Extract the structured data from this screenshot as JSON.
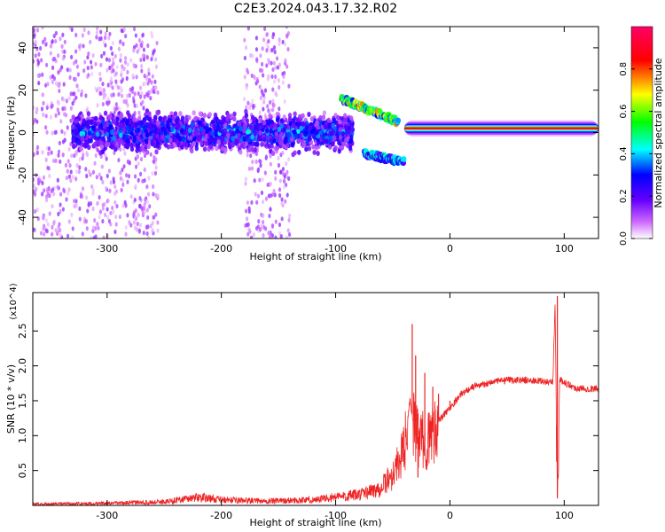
{
  "title": "C2E3.2024.043.17.32.R02",
  "chart_data": [
    {
      "type": "heatmap",
      "xlabel": "Height of straight line (km)",
      "ylabel": "Frequency (Hz)",
      "xlim": [
        -365,
        130
      ],
      "ylim": [
        -50,
        50
      ],
      "xticks": [
        -300,
        -200,
        -100,
        0,
        100
      ],
      "xtick_labels": [
        "-300",
        "-200",
        "-100",
        "0",
        "100"
      ],
      "yticks": [
        -40,
        -20,
        0,
        20,
        40
      ],
      "ytick_labels": [
        "-40",
        "-20",
        "0",
        "20",
        "40"
      ],
      "colorbar": {
        "label": "Normalized spectral amplitude",
        "range": [
          0,
          1
        ],
        "ticks": [
          0.0,
          0.2,
          0.4,
          0.6,
          0.8
        ],
        "tick_labels": [
          "0.0",
          "0.2",
          "0.4",
          "0.6",
          "0.8"
        ],
        "colors": [
          "#ffffff",
          "#cc66ff",
          "#6600ff",
          "#0000ff",
          "#00ffff",
          "#00ff00",
          "#ffff00",
          "#ff0000",
          "#ff0066"
        ]
      },
      "features": [
        {
          "region": "diffuse noise",
          "x_range": [
            -365,
            -255
          ],
          "y_range": [
            -50,
            50
          ],
          "amplitude": 0.1
        },
        {
          "region": "diffuse noise",
          "x_range": [
            -180,
            -140
          ],
          "y_range": [
            -50,
            50
          ],
          "amplitude": 0.1
        },
        {
          "region": "main band",
          "x_range": [
            -330,
            -85
          ],
          "y_center": 0,
          "y_halfwidth": 8,
          "amplitude": 0.3
        },
        {
          "region": "upper branch",
          "x_range": [
            -95,
            -45
          ],
          "y_start": 16,
          "y_end": 5,
          "amplitude": 0.6
        },
        {
          "region": "lower branch",
          "x_range": [
            -75,
            -40
          ],
          "y_start": -10,
          "y_end": -14,
          "amplitude": 0.4
        },
        {
          "region": "steady line",
          "x_range": [
            -40,
            130
          ],
          "y_center": 2,
          "amplitude": 0.95
        }
      ]
    },
    {
      "type": "line",
      "xlabel": "Height of straight line (km)",
      "ylabel": "SNR (10 * v/v)",
      "y_multiplier": "(x10^4)",
      "xlim": [
        -365,
        130
      ],
      "ylim": [
        0,
        3.05
      ],
      "xticks": [
        -300,
        -200,
        -100,
        0,
        100
      ],
      "xtick_labels": [
        "-300",
        "-200",
        "-100",
        "0",
        "100"
      ],
      "yticks": [
        0.5,
        1.0,
        1.5,
        2.0,
        2.5
      ],
      "ytick_labels": [
        "0.5",
        "1.0",
        "1.5",
        "2.0",
        "2.5"
      ],
      "series": [
        {
          "color": "#ee2222",
          "points": [
            [
              -365,
              0.02
            ],
            [
              -300,
              0.03
            ],
            [
              -250,
              0.05
            ],
            [
              -220,
              0.12
            ],
            [
              -200,
              0.08
            ],
            [
              -160,
              0.06
            ],
            [
              -120,
              0.08
            ],
            [
              -100,
              0.12
            ],
            [
              -80,
              0.15
            ],
            [
              -60,
              0.25
            ],
            [
              -50,
              0.45
            ],
            [
              -40,
              0.8
            ],
            [
              -35,
              1.5
            ],
            [
              -30,
              1.0
            ],
            [
              -20,
              0.9
            ],
            [
              -10,
              1.2
            ],
            [
              0,
              1.4
            ],
            [
              10,
              1.6
            ],
            [
              20,
              1.7
            ],
            [
              40,
              1.78
            ],
            [
              60,
              1.8
            ],
            [
              80,
              1.78
            ],
            [
              90,
              1.76
            ],
            [
              92,
              2.9
            ],
            [
              94,
              0.1
            ],
            [
              96,
              1.8
            ],
            [
              110,
              1.68
            ],
            [
              130,
              1.67
            ]
          ],
          "spikes": [
            [
              -33,
              2.6
            ],
            [
              -30,
              2.15
            ],
            [
              -28,
              0.4
            ],
            [
              -22,
              1.9
            ],
            [
              -15,
              1.7
            ],
            [
              -10,
              1.6
            ],
            [
              -5,
              1.35
            ],
            [
              0,
              1.5
            ],
            [
              5,
              1.5
            ],
            [
              94,
              3.0
            ]
          ]
        }
      ]
    }
  ]
}
